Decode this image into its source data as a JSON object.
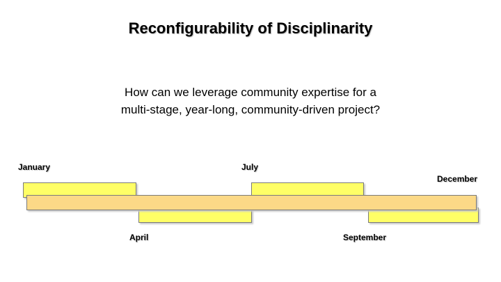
{
  "slide": {
    "title": "Reconfigurability of Disciplinarity",
    "question_lines": [
      "How can we leverage community expertise for a",
      "multi-stage, year-long, community-driven project?"
    ]
  },
  "timeline": {
    "months": {
      "january": "January",
      "april": "April",
      "july": "July",
      "september": "September",
      "december": "December"
    },
    "colors": {
      "stage_bar": "#ffff66",
      "year_bar": "#fcd987"
    }
  }
}
